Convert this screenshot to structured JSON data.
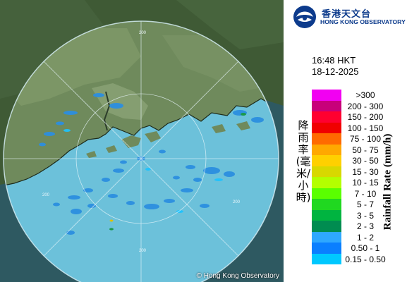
{
  "map": {
    "copyright": "© Hong Kong Observatory",
    "range_ring_label": "200",
    "colors": {
      "land": "#56734a",
      "sea_in_range": "#6fc3dc",
      "sea_outside": "#2f5a63",
      "range_edge": "#dff3fa",
      "coast": "#1e2a1c"
    }
  },
  "header": {
    "logo_cn": "香港天文台",
    "logo_en": "HONG KONG OBSERVATORY",
    "logo_icon": "hko-logo-icon"
  },
  "timestamp": {
    "time": "16:48 HKT",
    "date": "18-12-2025"
  },
  "legend": {
    "title_cn": "降雨率(毫米/小時)",
    "title_en": "Rainfall Rate (mm/h)",
    "items": [
      {
        "label": ">300",
        "color": "#f200f2"
      },
      {
        "label": "200 - 300",
        "color": "#c8007a"
      },
      {
        "label": "150 - 200",
        "color": "#ff0030"
      },
      {
        "label": "100 - 150",
        "color": "#f00000"
      },
      {
        "label": "75 - 100",
        "color": "#ff6a00"
      },
      {
        "label": "50 - 75",
        "color": "#ffa800"
      },
      {
        "label": "30 - 50",
        "color": "#ffd000"
      },
      {
        "label": "15 - 30",
        "color": "#d8d800"
      },
      {
        "label": "10 - 15",
        "color": "#b4ff00"
      },
      {
        "label": "7 - 10",
        "color": "#5aff00"
      },
      {
        "label": "5 - 7",
        "color": "#20d820"
      },
      {
        "label": "3 - 5",
        "color": "#00b440"
      },
      {
        "label": "2 - 3",
        "color": "#008c50"
      },
      {
        "label": "1 - 2",
        "color": "#2ea8ff"
      },
      {
        "label": "0.50 - 1",
        "color": "#0a7fff"
      },
      {
        "label": "0.15 - 0.50",
        "color": "#00c8ff"
      }
    ]
  }
}
